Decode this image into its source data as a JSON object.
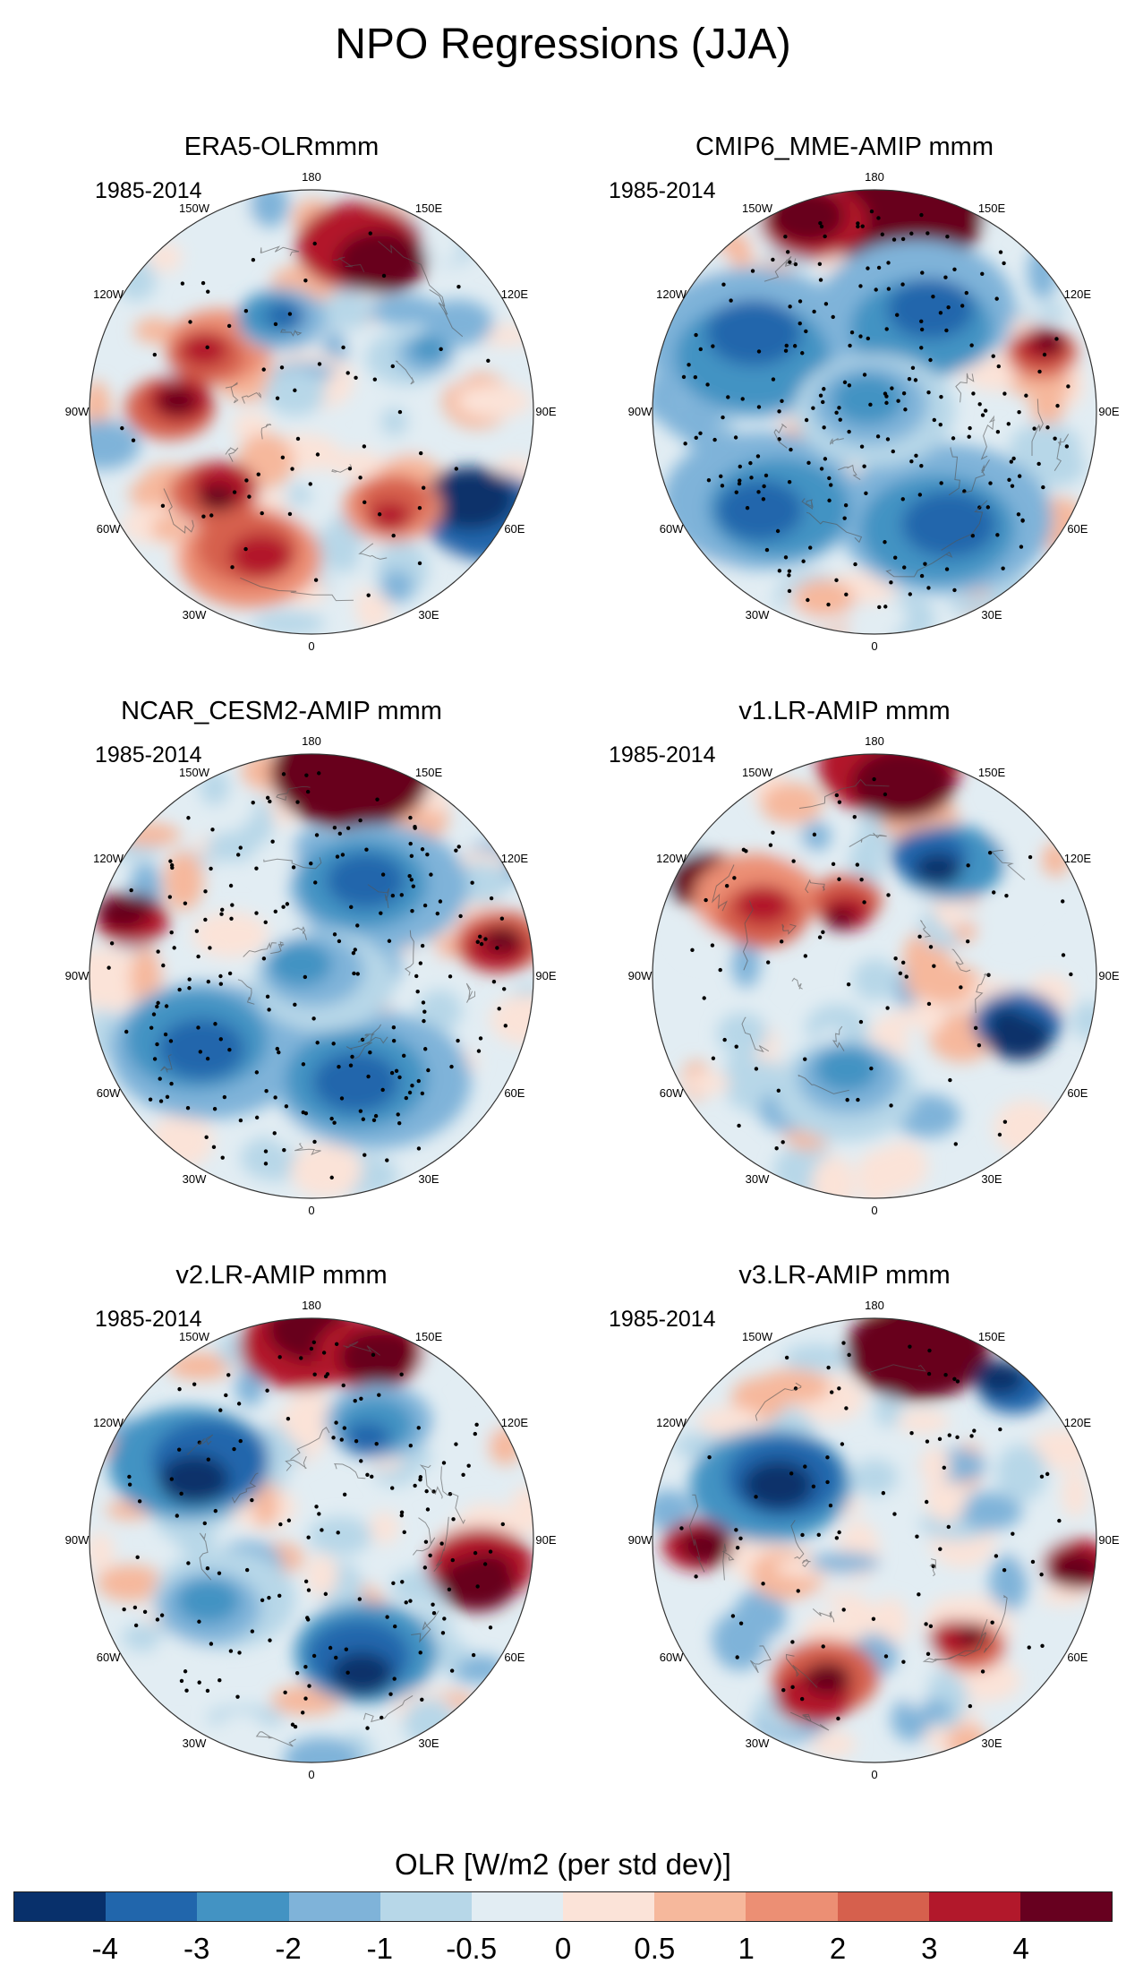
{
  "figure_title": "NPO Regressions (JJA)",
  "chart_data": {
    "type": "heatmap",
    "title": "NPO Regressions (JJA)",
    "variable": "OLR",
    "colorbar_label": "OLR [W/m2 (per std dev)]",
    "colorbar_levels": [
      "-4",
      "-3",
      "-2",
      "-1",
      "-0.5",
      "0",
      "0.5",
      "1",
      "2",
      "3",
      "4"
    ],
    "colorbar_colors": [
      "#08306b",
      "#2166ac",
      "#4393c3",
      "#7fb3d9",
      "#b7d7e8",
      "#e2edf3",
      "#fbe3d8",
      "#f6b89c",
      "#ec8f74",
      "#d6604d",
      "#b2182b",
      "#67001f"
    ],
    "projection": "polar stereographic, North Pole",
    "longitude_labels": [
      "180",
      "150E",
      "120E",
      "90E",
      "60E",
      "30E",
      "0",
      "30W",
      "60W",
      "90W",
      "120W",
      "150W"
    ],
    "panels": [
      {
        "title": "ERA5-OLRmmm",
        "period": "1985-2014"
      },
      {
        "title": "CMIP6_MME-AMIP  mmm",
        "period": "1985-2014"
      },
      {
        "title": "NCAR_CESM2-AMIP  mmm",
        "period": "1985-2014"
      },
      {
        "title": "v1.LR-AMIP  mmm",
        "period": "1985-2014"
      },
      {
        "title": "v2.LR-AMIP  mmm",
        "period": "1985-2014"
      },
      {
        "title": "v3.LR-AMIP  mmm",
        "period": "1985-2014"
      }
    ]
  }
}
